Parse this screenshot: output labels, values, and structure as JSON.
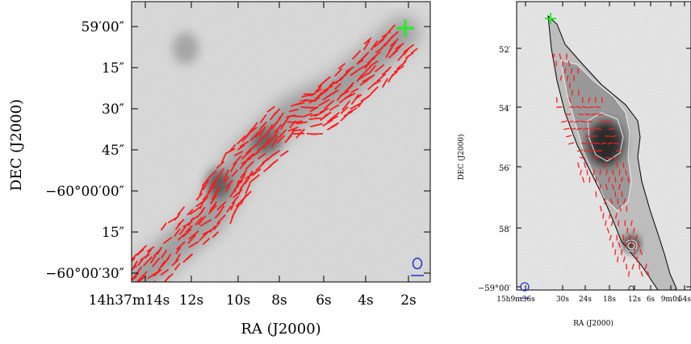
{
  "left_panel": {
    "xlabel": "RA (J2000)",
    "ylabel": "DEC (J2000)",
    "x_ticks": [
      "14h37m14s",
      "12s",
      "10s",
      "8s",
      "6s",
      "4s",
      "2s"
    ],
    "y_ticks": [
      "59′00″",
      "15″",
      "30″",
      "45″",
      "−60°00′00″",
      "15″",
      "−60°00′30″"
    ],
    "vector_color": "#ff1a1a",
    "marker_color": "#22ee22",
    "beam_color": "#2233cc"
  },
  "right_panel": {
    "xlabel": "RA (J2000)",
    "ylabel": "DEC (J2000)",
    "x_ticks": [
      "15h9m36s",
      "30s",
      "24s",
      "18s",
      "12s",
      "6s",
      "9m0s",
      "54s"
    ],
    "y_ticks": [
      "52′",
      "54′",
      "56′",
      "58′",
      "−59°00′"
    ],
    "vector_color": "#ff1a1a",
    "marker_color": "#22ee22",
    "beam_color": "#2233cc"
  }
}
